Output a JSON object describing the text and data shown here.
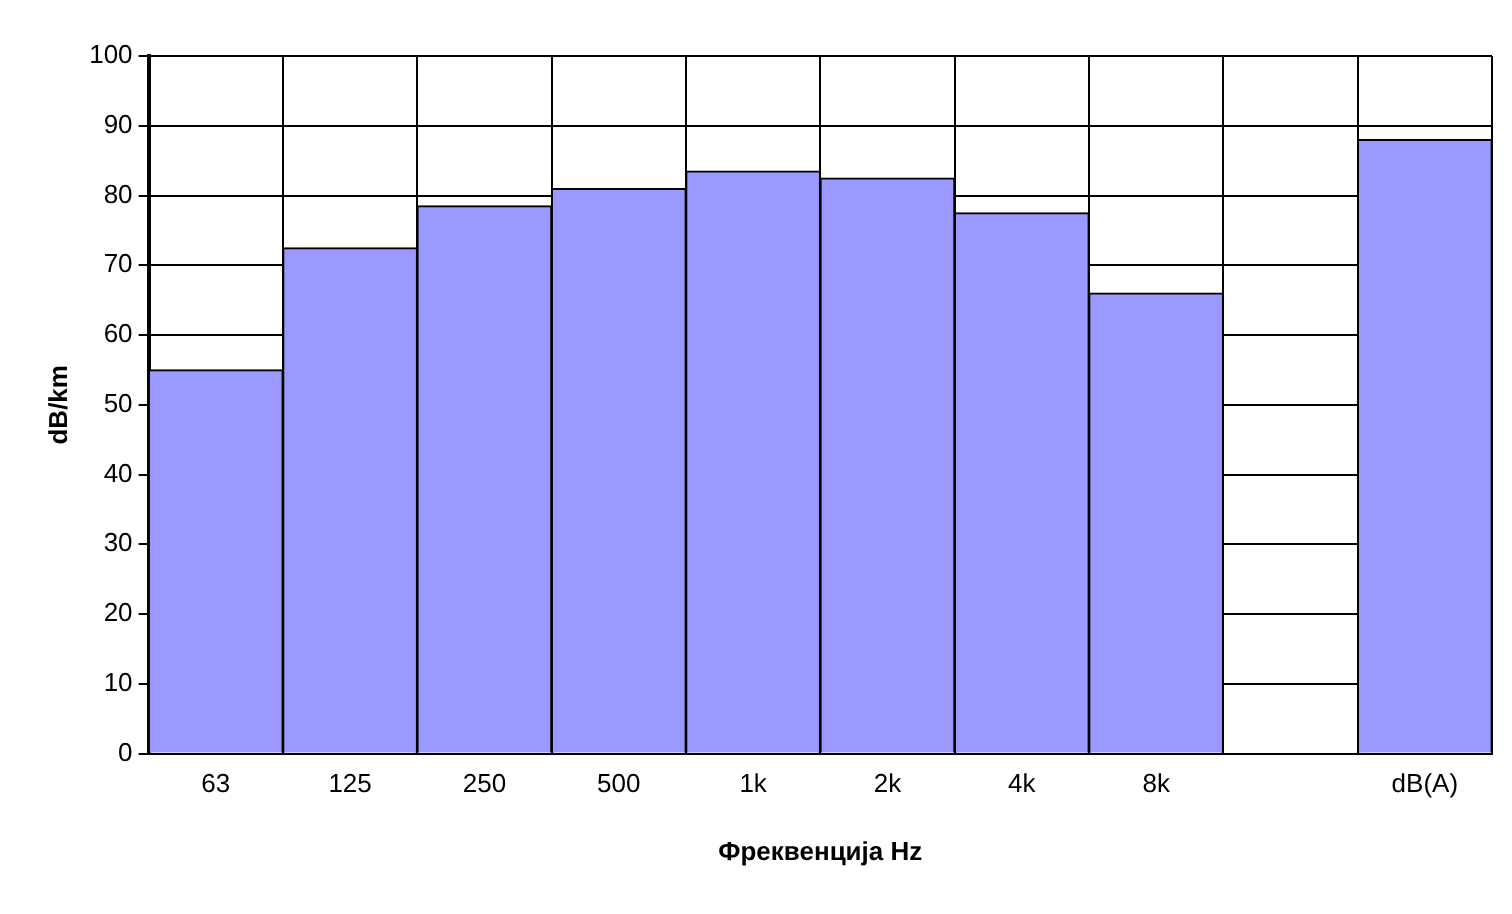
{
  "chart_data": {
    "type": "bar",
    "xlabel": "Фреквенција Hz",
    "ylabel": "dB/km",
    "categories": [
      "63",
      "125",
      "250",
      "500",
      "1k",
      "2k",
      "4k",
      "8k",
      null,
      "dB(A)"
    ],
    "values": [
      55,
      72.5,
      78.5,
      81,
      83.5,
      82.5,
      77.5,
      66,
      null,
      88
    ],
    "color": "#9999ff",
    "ylim": [
      0,
      100
    ],
    "yticks": [
      0,
      10,
      20,
      30,
      40,
      50,
      60,
      70,
      80,
      90,
      100
    ],
    "grid": true,
    "legend": false
  }
}
